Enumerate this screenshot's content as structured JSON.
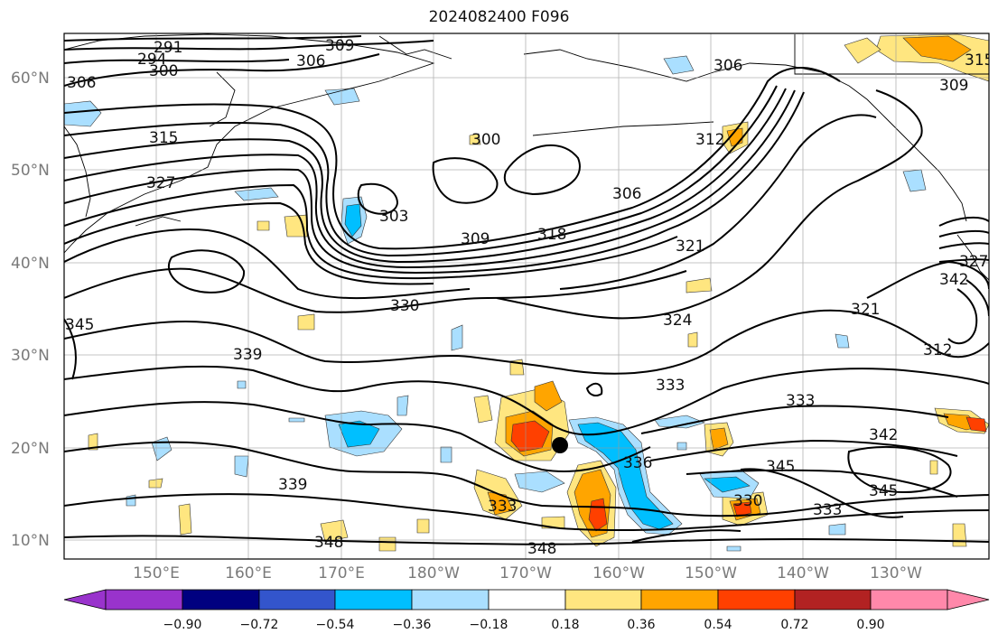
{
  "title": "2024082400 F096",
  "map": {
    "lat_labels": [
      "60°N",
      "50°N",
      "40°N",
      "30°N",
      "20°N",
      "10°N"
    ],
    "lon_labels": [
      "150°E",
      "160°E",
      "170°E",
      "180°W",
      "170°W",
      "160°W",
      "150°W",
      "140°W",
      "130°W"
    ],
    "contour_labels": [
      {
        "text": "291"
      },
      {
        "text": "294"
      },
      {
        "text": "300"
      },
      {
        "text": "306"
      },
      {
        "text": "309"
      },
      {
        "text": "306"
      },
      {
        "text": "315"
      },
      {
        "text": "327"
      },
      {
        "text": "303"
      },
      {
        "text": "309"
      },
      {
        "text": "318"
      },
      {
        "text": "306"
      },
      {
        "text": "300"
      },
      {
        "text": "312"
      },
      {
        "text": "306"
      },
      {
        "text": "330"
      },
      {
        "text": "324"
      },
      {
        "text": "321"
      },
      {
        "text": "321"
      },
      {
        "text": "312"
      },
      {
        "text": "339"
      },
      {
        "text": "345"
      },
      {
        "text": "333"
      },
      {
        "text": "333"
      },
      {
        "text": "342"
      },
      {
        "text": "345"
      },
      {
        "text": "345"
      },
      {
        "text": "339"
      },
      {
        "text": "333"
      },
      {
        "text": "333"
      },
      {
        "text": "348"
      },
      {
        "text": "348"
      },
      {
        "text": "330"
      },
      {
        "text": "336"
      },
      {
        "text": "309"
      },
      {
        "text": "315"
      },
      {
        "text": "327"
      },
      {
        "text": "342"
      }
    ]
  },
  "colorbar": {
    "colors": [
      "#9933cc",
      "#000080",
      "#3355cc",
      "#00bfff",
      "#aadfff",
      "#ffffff",
      "#ffe680",
      "#ffa500",
      "#ff4000",
      "#b22222",
      "#ff88aa"
    ],
    "tick_labels": [
      "−0.90",
      "−0.72",
      "−0.54",
      "−0.36",
      "−0.18",
      "0.18",
      "0.36",
      "0.54",
      "0.72",
      "0.90"
    ]
  }
}
